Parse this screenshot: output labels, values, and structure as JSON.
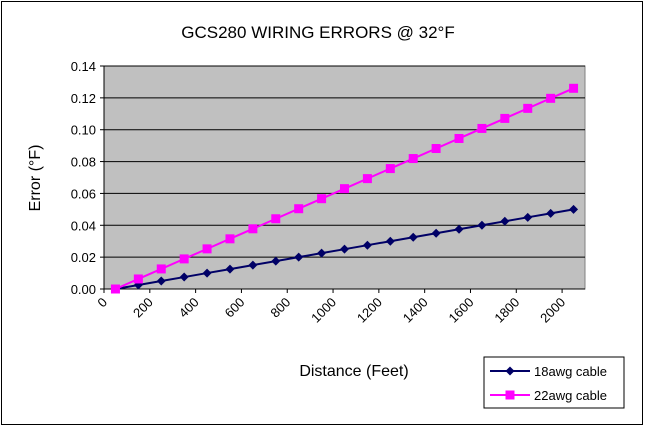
{
  "chart_data": {
    "type": "line",
    "title": "GCS280 WIRING ERRORS @ 32°F",
    "xlabel": "Distance (Feet)",
    "ylabel": "Error (°F)",
    "xlim": [
      0,
      2100
    ],
    "ylim": [
      0,
      0.14
    ],
    "xticks": [
      "0",
      "200",
      "400",
      "600",
      "800",
      "1000",
      "1200",
      "1400",
      "1600",
      "1800",
      "2000"
    ],
    "yticks": [
      "0.00",
      "0.02",
      "0.04",
      "0.06",
      "0.08",
      "0.10",
      "0.12",
      "0.14"
    ],
    "grid": "horizontal",
    "legend_position": "bottom-right",
    "x": [
      50,
      150,
      250,
      350,
      450,
      550,
      650,
      750,
      850,
      950,
      1050,
      1150,
      1250,
      1350,
      1450,
      1550,
      1650,
      1750,
      1850,
      1950,
      2050
    ],
    "series": [
      {
        "name": "18awg cable",
        "color": "#000066",
        "marker": "diamond",
        "values": [
          0.0,
          0.0025,
          0.005,
          0.0075,
          0.01,
          0.0125,
          0.015,
          0.0175,
          0.02,
          0.0225,
          0.025,
          0.0275,
          0.03,
          0.0325,
          0.035,
          0.0375,
          0.04,
          0.0425,
          0.045,
          0.0475,
          0.05
        ]
      },
      {
        "name": "22awg cable",
        "color": "#ff00ff",
        "marker": "square",
        "values": [
          0.0,
          0.0063,
          0.0126,
          0.0189,
          0.0252,
          0.0315,
          0.0378,
          0.0441,
          0.0504,
          0.0567,
          0.063,
          0.0693,
          0.0756,
          0.0819,
          0.0882,
          0.0945,
          0.1008,
          0.1071,
          0.1134,
          0.1197,
          0.126
        ]
      }
    ]
  }
}
